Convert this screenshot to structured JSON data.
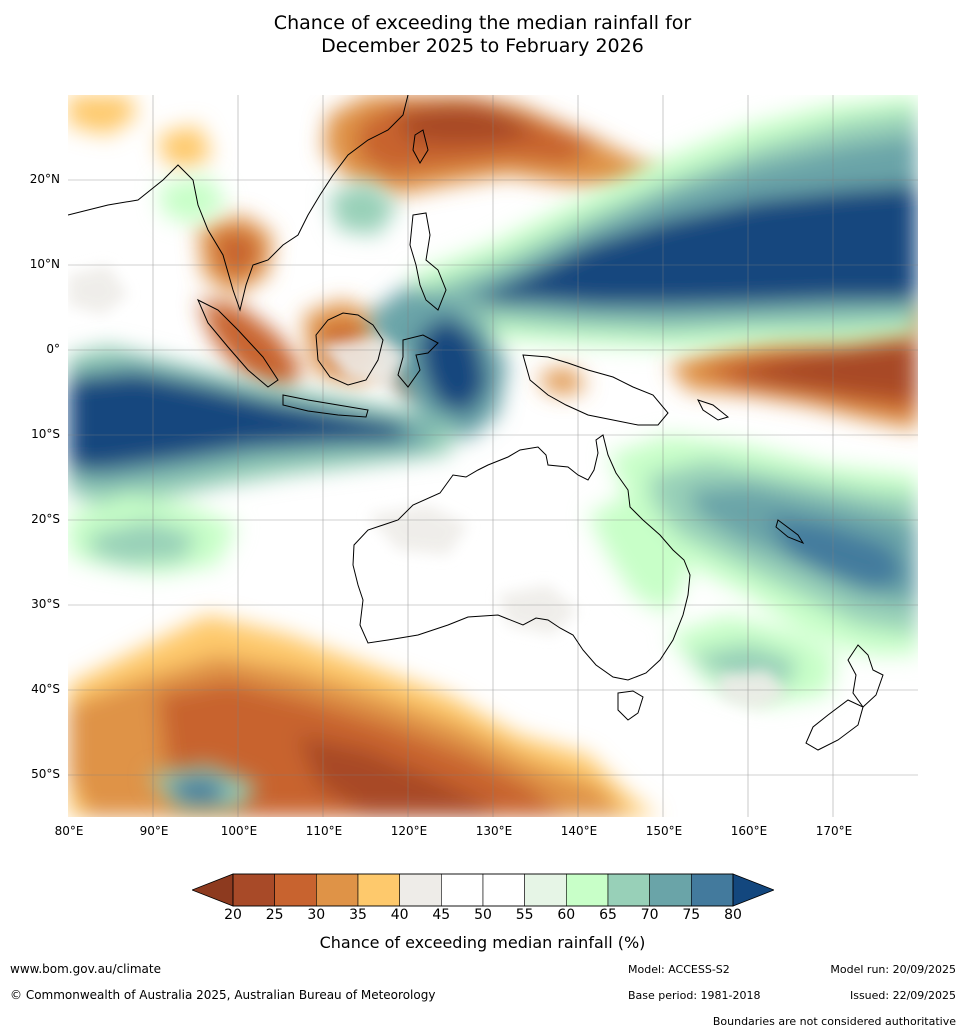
{
  "title": {
    "line1": "Chance of exceeding the median rainfall for",
    "line2": "December 2025 to February 2026"
  },
  "map": {
    "lon_range": [
      80,
      180
    ],
    "lat_range": [
      -55,
      30
    ],
    "lat_labels": [
      "20°N",
      "10°N",
      "0°",
      "10°S",
      "20°S",
      "30°S",
      "40°S",
      "50°S"
    ],
    "lat_values": [
      20,
      10,
      0,
      -10,
      -20,
      -30,
      -40,
      -50
    ],
    "lon_labels": [
      "80°E",
      "90°E",
      "100°E",
      "110°E",
      "120°E",
      "130°E",
      "140°E",
      "150°E",
      "160°E",
      "170°E"
    ],
    "lon_values": [
      80,
      90,
      100,
      110,
      120,
      130,
      140,
      150,
      160,
      170
    ]
  },
  "colorbar": {
    "ticks": [
      "20",
      "25",
      "30",
      "35",
      "40",
      "45",
      "50",
      "55",
      "60",
      "65",
      "70",
      "75",
      "80"
    ],
    "colors": [
      "#a84a28",
      "#c8632f",
      "#df9347",
      "#fec96c",
      "#eeece8",
      "#ffffff",
      "#ffffff",
      "#e6f5e6",
      "#c8ffc8",
      "#98d0b8",
      "#6aa4a8",
      "#437a9d"
    ],
    "under_color": "#8d3a1f",
    "over_color": "#13477e",
    "label": "Chance of exceeding median rainfall (%)"
  },
  "footer": {
    "website": "www.bom.gov.au/climate",
    "copyright": "© Commonwealth of Australia 2025, Australian Bureau of Meteorology",
    "model": "Model: ACCESS-S2",
    "base_period": "Base period: 1981-2018",
    "model_run": "Model run: 20/09/2025",
    "issued": "Issued: 22/09/2025",
    "disclaimer": "Boundaries are not considered authoritative"
  }
}
